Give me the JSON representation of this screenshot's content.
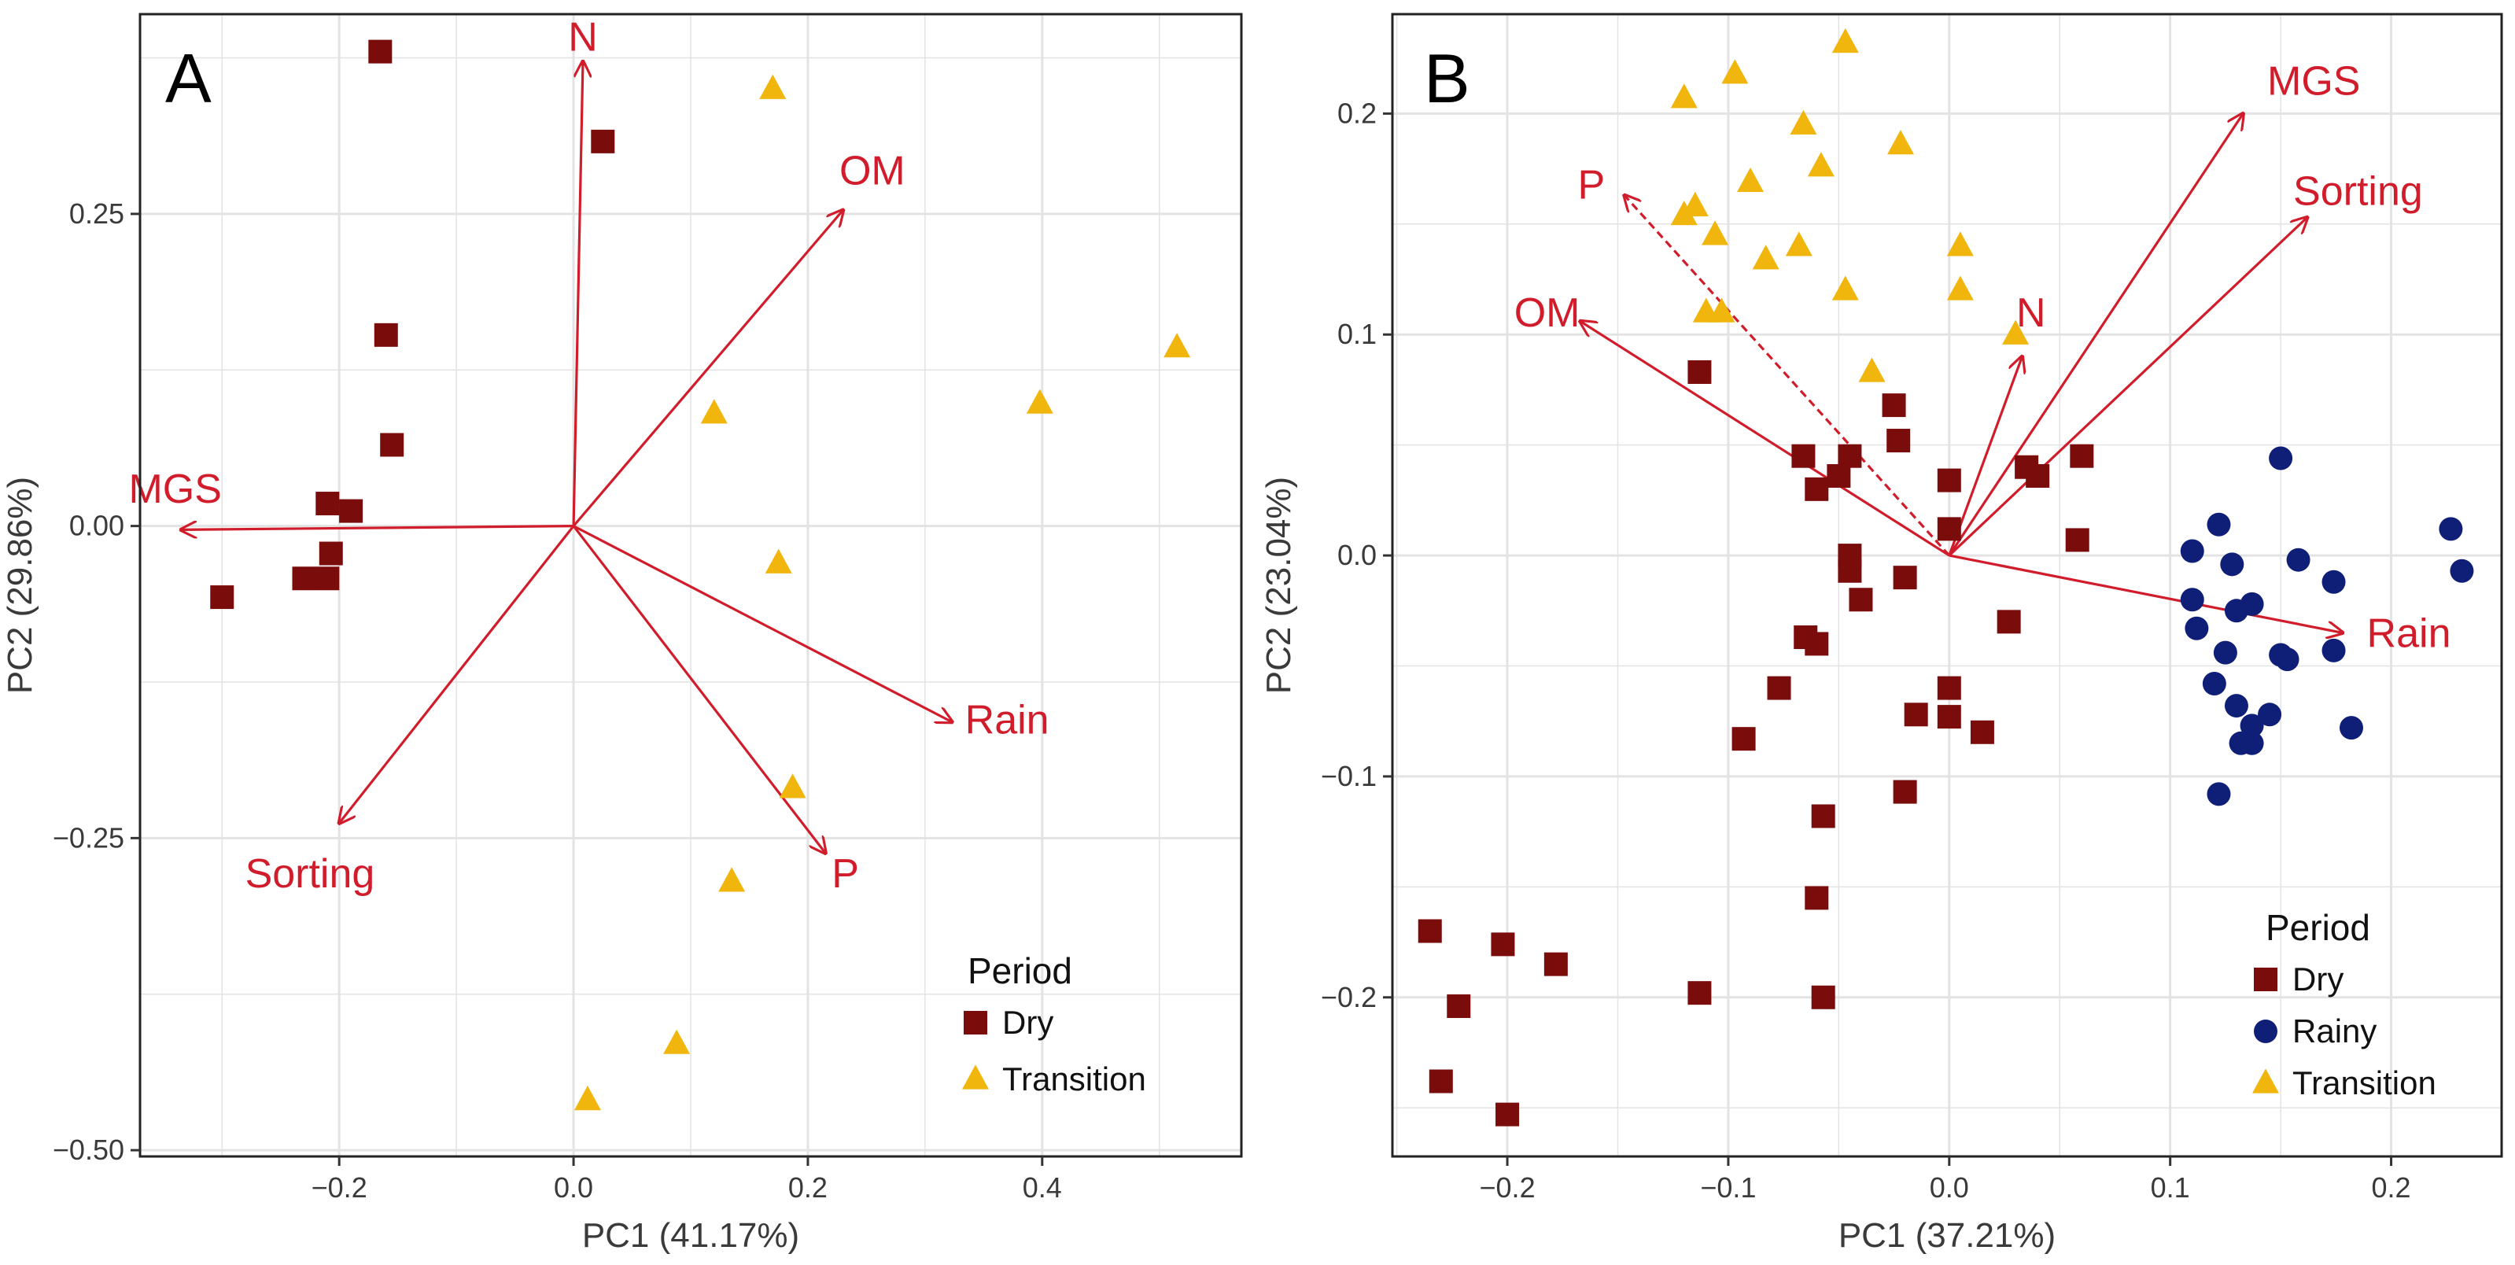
{
  "colors": {
    "dry": "#7a0c0c",
    "rainy": "#0f1f78",
    "transition": "#f1b60e",
    "vector": "#d11d2b",
    "grid": "#e3e3e3",
    "frame": "#222222"
  },
  "chart_data": [
    {
      "type": "scatter",
      "panel": "A",
      "xlabel": "PC1 (41.17%)",
      "ylabel": "PC2 (29.86%)",
      "xlim": [
        -0.37,
        0.57
      ],
      "ylim": [
        -0.505,
        0.41
      ],
      "xticks": [
        -0.2,
        0.0,
        0.2,
        0.4
      ],
      "xtick_labels": [
        "-0.2",
        "0.0",
        "0.2",
        "0.4"
      ],
      "yticks": [
        -0.5,
        -0.25,
        0.0,
        0.25
      ],
      "ytick_labels": [
        "-0.50",
        "-0.25",
        "0.00",
        "0.25"
      ],
      "legend": {
        "title": "Period",
        "position": "bottom-right",
        "entries": [
          {
            "label": "Dry",
            "key": "dry",
            "shape": "square"
          },
          {
            "label": "Transition",
            "key": "transition",
            "shape": "triangle"
          }
        ]
      },
      "series": [
        {
          "name": "Dry",
          "key": "dry",
          "shape": "square",
          "points": [
            [
              -0.165,
              0.38
            ],
            [
              0.025,
              0.308
            ],
            [
              -0.16,
              0.153
            ],
            [
              -0.155,
              0.065
            ],
            [
              -0.21,
              0.018
            ],
            [
              -0.19,
              0.012
            ],
            [
              -0.207,
              -0.022
            ],
            [
              -0.21,
              -0.042
            ],
            [
              -0.23,
              -0.042
            ],
            [
              -0.3,
              -0.057
            ]
          ]
        },
        {
          "name": "Transition",
          "key": "transition",
          "shape": "triangle",
          "points": [
            [
              0.17,
              0.35
            ],
            [
              0.515,
              0.143
            ],
            [
              0.398,
              0.098
            ],
            [
              0.12,
              0.09
            ],
            [
              0.175,
              -0.03
            ],
            [
              0.187,
              -0.21
            ],
            [
              0.135,
              -0.285
            ],
            [
              0.088,
              -0.415
            ],
            [
              0.012,
              -0.46
            ]
          ]
        }
      ],
      "vectors": [
        {
          "name": "N",
          "x": 0.008,
          "y": 0.372,
          "label_x": 0.008,
          "label_y": 0.392
        },
        {
          "name": "OM",
          "x": 0.23,
          "y": 0.253,
          "label_x": 0.255,
          "label_y": 0.285
        },
        {
          "name": "MGS",
          "x": -0.335,
          "y": -0.003,
          "label_x": -0.34,
          "label_y": 0.03
        },
        {
          "name": "Rain",
          "x": 0.323,
          "y": -0.157,
          "label_x": 0.37,
          "label_y": -0.155
        },
        {
          "name": "P",
          "x": 0.215,
          "y": -0.262,
          "label_x": 0.232,
          "label_y": -0.278
        },
        {
          "name": "Sorting",
          "x": -0.2,
          "y": -0.238,
          "label_x": -0.225,
          "label_y": -0.278
        }
      ]
    },
    {
      "type": "scatter",
      "panel": "B",
      "xlabel": "PC1 (37.21%)",
      "ylabel": "PC2 (23.04%)",
      "xlim": [
        -0.252,
        0.25
      ],
      "ylim": [
        -0.272,
        0.245
      ],
      "xticks": [
        -0.2,
        -0.1,
        0.0,
        0.1,
        0.2
      ],
      "xtick_labels": [
        "-0.2",
        "-0.1",
        "0.0",
        "0.1",
        "0.2"
      ],
      "yticks": [
        -0.2,
        -0.1,
        0.0,
        0.1,
        0.2
      ],
      "ytick_labels": [
        "-0.2",
        "-0.1",
        "0.0",
        "0.1",
        "0.2"
      ],
      "legend": {
        "title": "Period",
        "position": "bottom-right",
        "entries": [
          {
            "label": "Dry",
            "key": "dry",
            "shape": "square"
          },
          {
            "label": "Rainy",
            "key": "rainy",
            "shape": "circle"
          },
          {
            "label": "Transition",
            "key": "transition",
            "shape": "triangle"
          }
        ]
      },
      "series": [
        {
          "name": "Dry",
          "key": "dry",
          "shape": "square",
          "points": [
            [
              -0.113,
              0.083
            ],
            [
              -0.066,
              0.045
            ],
            [
              -0.05,
              0.036
            ],
            [
              -0.045,
              0.045
            ],
            [
              -0.06,
              0.03
            ],
            [
              -0.025,
              0.068
            ],
            [
              -0.023,
              0.052
            ],
            [
              0.0,
              0.034
            ],
            [
              0.0,
              0.012
            ],
            [
              0.035,
              0.04
            ],
            [
              0.04,
              0.036
            ],
            [
              0.06,
              0.045
            ],
            [
              0.058,
              0.007
            ],
            [
              -0.045,
              0.0
            ],
            [
              -0.045,
              -0.007
            ],
            [
              -0.04,
              -0.02
            ],
            [
              -0.065,
              -0.037
            ],
            [
              -0.06,
              -0.04
            ],
            [
              -0.02,
              -0.01
            ],
            [
              0.027,
              -0.03
            ],
            [
              -0.077,
              -0.06
            ],
            [
              -0.093,
              -0.083
            ],
            [
              0.0,
              -0.06
            ],
            [
              0.0,
              -0.073
            ],
            [
              -0.015,
              -0.072
            ],
            [
              0.015,
              -0.08
            ],
            [
              -0.02,
              -0.107
            ],
            [
              -0.057,
              -0.118
            ],
            [
              -0.06,
              -0.155
            ],
            [
              -0.113,
              -0.198
            ],
            [
              -0.057,
              -0.2
            ],
            [
              -0.235,
              -0.17
            ],
            [
              -0.202,
              -0.176
            ],
            [
              -0.178,
              -0.185
            ],
            [
              -0.222,
              -0.204
            ],
            [
              -0.23,
              -0.238
            ],
            [
              -0.2,
              -0.253
            ]
          ]
        },
        {
          "name": "Rainy",
          "key": "rainy",
          "shape": "circle",
          "points": [
            [
              0.15,
              0.044
            ],
            [
              0.227,
              0.012
            ],
            [
              0.232,
              -0.007
            ],
            [
              0.122,
              0.014
            ],
            [
              0.158,
              -0.002
            ],
            [
              0.11,
              0.002
            ],
            [
              0.128,
              -0.004
            ],
            [
              0.174,
              -0.012
            ],
            [
              0.11,
              -0.02
            ],
            [
              0.13,
              -0.025
            ],
            [
              0.137,
              -0.022
            ],
            [
              0.112,
              -0.033
            ],
            [
              0.125,
              -0.044
            ],
            [
              0.15,
              -0.045
            ],
            [
              0.153,
              -0.047
            ],
            [
              0.174,
              -0.043
            ],
            [
              0.12,
              -0.058
            ],
            [
              0.13,
              -0.068
            ],
            [
              0.145,
              -0.072
            ],
            [
              0.137,
              -0.077
            ],
            [
              0.132,
              -0.085
            ],
            [
              0.137,
              -0.085
            ],
            [
              0.182,
              -0.078
            ],
            [
              0.122,
              -0.108
            ]
          ]
        },
        {
          "name": "Transition",
          "key": "transition",
          "shape": "triangle",
          "points": [
            [
              -0.047,
              0.232
            ],
            [
              -0.12,
              0.207
            ],
            [
              -0.097,
              0.218
            ],
            [
              -0.066,
              0.195
            ],
            [
              -0.022,
              0.186
            ],
            [
              -0.115,
              0.158
            ],
            [
              -0.12,
              0.154
            ],
            [
              -0.058,
              0.176
            ],
            [
              -0.09,
              0.169
            ],
            [
              -0.106,
              0.145
            ],
            [
              -0.068,
              0.14
            ],
            [
              -0.083,
              0.134
            ],
            [
              -0.047,
              0.12
            ],
            [
              -0.11,
              0.11
            ],
            [
              -0.103,
              0.11
            ],
            [
              0.005,
              0.14
            ],
            [
              0.005,
              0.12
            ],
            [
              0.03,
              0.1
            ],
            [
              -0.035,
              0.083
            ]
          ]
        }
      ],
      "vectors": [
        {
          "name": "MGS",
          "x": 0.133,
          "y": 0.2,
          "label_x": 0.165,
          "label_y": 0.215
        },
        {
          "name": "Sorting",
          "x": 0.162,
          "y": 0.153,
          "label_x": 0.185,
          "label_y": 0.165
        },
        {
          "name": "P",
          "x": -0.147,
          "y": 0.163,
          "label_x": -0.162,
          "label_y": 0.168
        },
        {
          "name": "OM",
          "x": -0.167,
          "y": 0.106,
          "label_x": -0.182,
          "label_y": 0.11
        },
        {
          "name": "N",
          "x": 0.033,
          "y": 0.09,
          "label_x": 0.037,
          "label_y": 0.11
        },
        {
          "name": "Rain",
          "x": 0.178,
          "y": -0.035,
          "label_x": 0.208,
          "label_y": -0.035
        }
      ]
    }
  ]
}
